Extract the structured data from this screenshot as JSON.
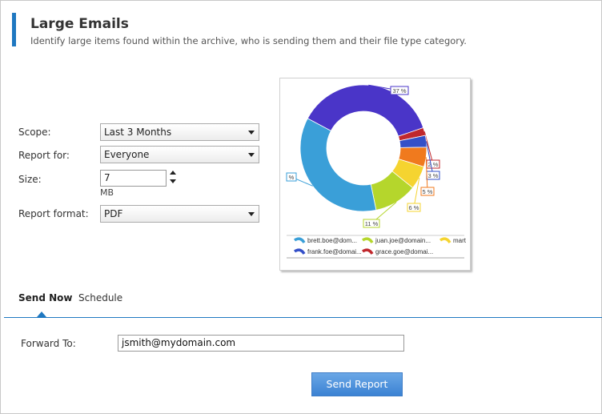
{
  "header": {
    "title": "Large Emails",
    "subtitle": "Identify large items found within the archive, who is sending them and their file type category."
  },
  "form": {
    "scope": {
      "label": "Scope:",
      "value": "Last 3 Months"
    },
    "report_for": {
      "label": "Report for:",
      "value": "Everyone"
    },
    "size": {
      "label": "Size:",
      "value": "7",
      "unit": "MB"
    },
    "report_format": {
      "label": "Report format:",
      "value": "PDF"
    }
  },
  "chart_data": {
    "type": "pie",
    "slices": [
      {
        "label": "37 %",
        "value": 37,
        "color": "#4a35c8"
      },
      {
        "label": "2 %",
        "value": 2,
        "color": "#c0282d"
      },
      {
        "label": "3 %",
        "value": 3,
        "color": "#3450c8"
      },
      {
        "label": "5 %",
        "value": 5,
        "color": "#f07a1e"
      },
      {
        "label": "6 %",
        "value": 6,
        "color": "#f5d430"
      },
      {
        "label": "11 %",
        "value": 11,
        "color": "#b5d62c"
      },
      {
        "label": "%",
        "value": 36,
        "color": "#3a9fd8"
      }
    ],
    "legend": [
      {
        "name": "brett.boe@dom...",
        "color": "#3a9fd8"
      },
      {
        "name": "juan.joe@domain...",
        "color": "#b5d62c"
      },
      {
        "name": "mart",
        "color": "#f5d430"
      },
      {
        "name": "frank.foe@domai...",
        "color": "#3450c8"
      },
      {
        "name": "grace.goe@domai...",
        "color": "#c0282d"
      }
    ]
  },
  "tabs": [
    {
      "label": "Send Now"
    },
    {
      "label": "Schedule"
    }
  ],
  "send": {
    "forward_label": "Forward To:",
    "forward_value": "jsmith@mydomain.com",
    "button_label": "Send Report"
  }
}
